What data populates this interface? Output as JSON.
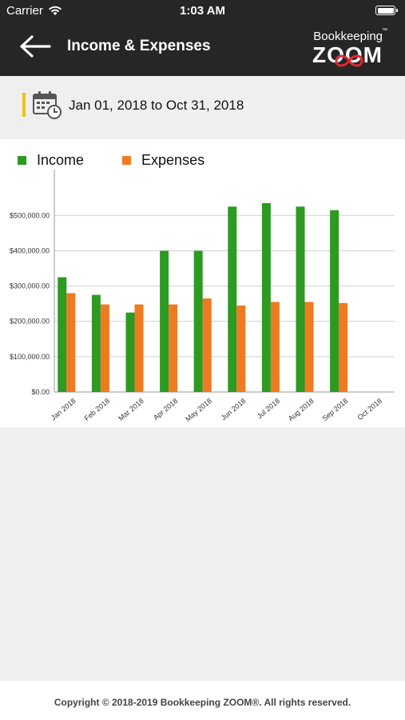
{
  "status_bar": {
    "carrier": "Carrier",
    "time": "1:03 AM"
  },
  "header": {
    "title": "Income & Expenses",
    "logo_top": "Bookkeeping",
    "logo_tm": "™",
    "logo_bottom": "ZOOM",
    "logo_accent_color": "#e3262e"
  },
  "date_range": {
    "text": "Jan 01, 2018 to Oct 31, 2018",
    "accent_color": "#f1c40f"
  },
  "legend": [
    {
      "label": "Income",
      "color": "#2d9a22"
    },
    {
      "label": "Expenses",
      "color": "#ee7a22"
    }
  ],
  "chart_data": {
    "type": "bar",
    "categories": [
      "Jan 2018",
      "Feb 2018",
      "Mar 2018",
      "Apr 2018",
      "May 2018",
      "Jun 2018",
      "Jul 2018",
      "Aug 2018",
      "Sep 2018",
      "Oct 2018"
    ],
    "series": [
      {
        "name": "Income",
        "color": "#2d9a22",
        "values": [
          325000,
          275000,
          225000,
          400000,
          400000,
          525000,
          535000,
          525000,
          515000,
          null
        ]
      },
      {
        "name": "Expenses",
        "color": "#ee7a22",
        "values": [
          280000,
          248000,
          248000,
          248000,
          265000,
          245000,
          255000,
          255000,
          252000,
          null
        ]
      }
    ],
    "yticks": [
      "$0.00",
      "$100,000.00",
      "$200,000.00",
      "$300,000.00",
      "$400,000.00",
      "$500,000.00"
    ],
    "ytick_values": [
      0,
      100000,
      200000,
      300000,
      400000,
      500000
    ],
    "ylim": [
      0,
      580000
    ],
    "grid": true,
    "legend_position": "top-left",
    "title": "",
    "xlabel": "",
    "ylabel": ""
  },
  "footer": {
    "text": "Copyright © 2018-2019 Bookkeeping ZOOM®. All rights reserved."
  }
}
